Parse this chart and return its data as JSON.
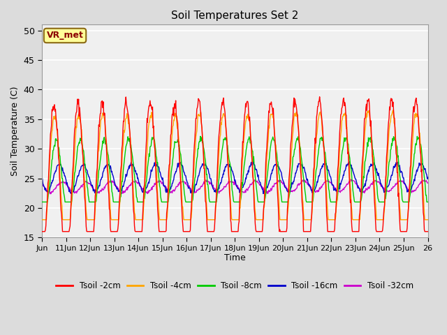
{
  "title": "Soil Temperatures Set 2",
  "xlabel": "Time",
  "ylabel": "Soil Temperature (C)",
  "ylim": [
    15,
    51
  ],
  "yticks": [
    15,
    20,
    25,
    30,
    35,
    40,
    45,
    50
  ],
  "x_labels": [
    "Jun",
    "11Jun",
    "12Jun",
    "13Jun",
    "14Jun",
    "15Jun",
    "16Jun",
    "17Jun",
    "18Jun",
    "19Jun",
    "20Jun",
    "21Jun",
    "22Jun",
    "23Jun",
    "24Jun",
    "25Jun",
    "26"
  ],
  "annotation_text": "VR_met",
  "annotation_bg": "#FFFF99",
  "annotation_edge": "#8B6914",
  "series_colors": [
    "#FF0000",
    "#FFA500",
    "#00CC00",
    "#0000CC",
    "#CC00CC"
  ],
  "series_labels": [
    "Tsoil -2cm",
    "Tsoil -4cm",
    "Tsoil -8cm",
    "Tsoil -16cm",
    "Tsoil -32cm"
  ],
  "fig_bg_color": "#DCDCDC",
  "plot_bg": "#F0F0F0",
  "num_days": 16,
  "points_per_day": 48
}
